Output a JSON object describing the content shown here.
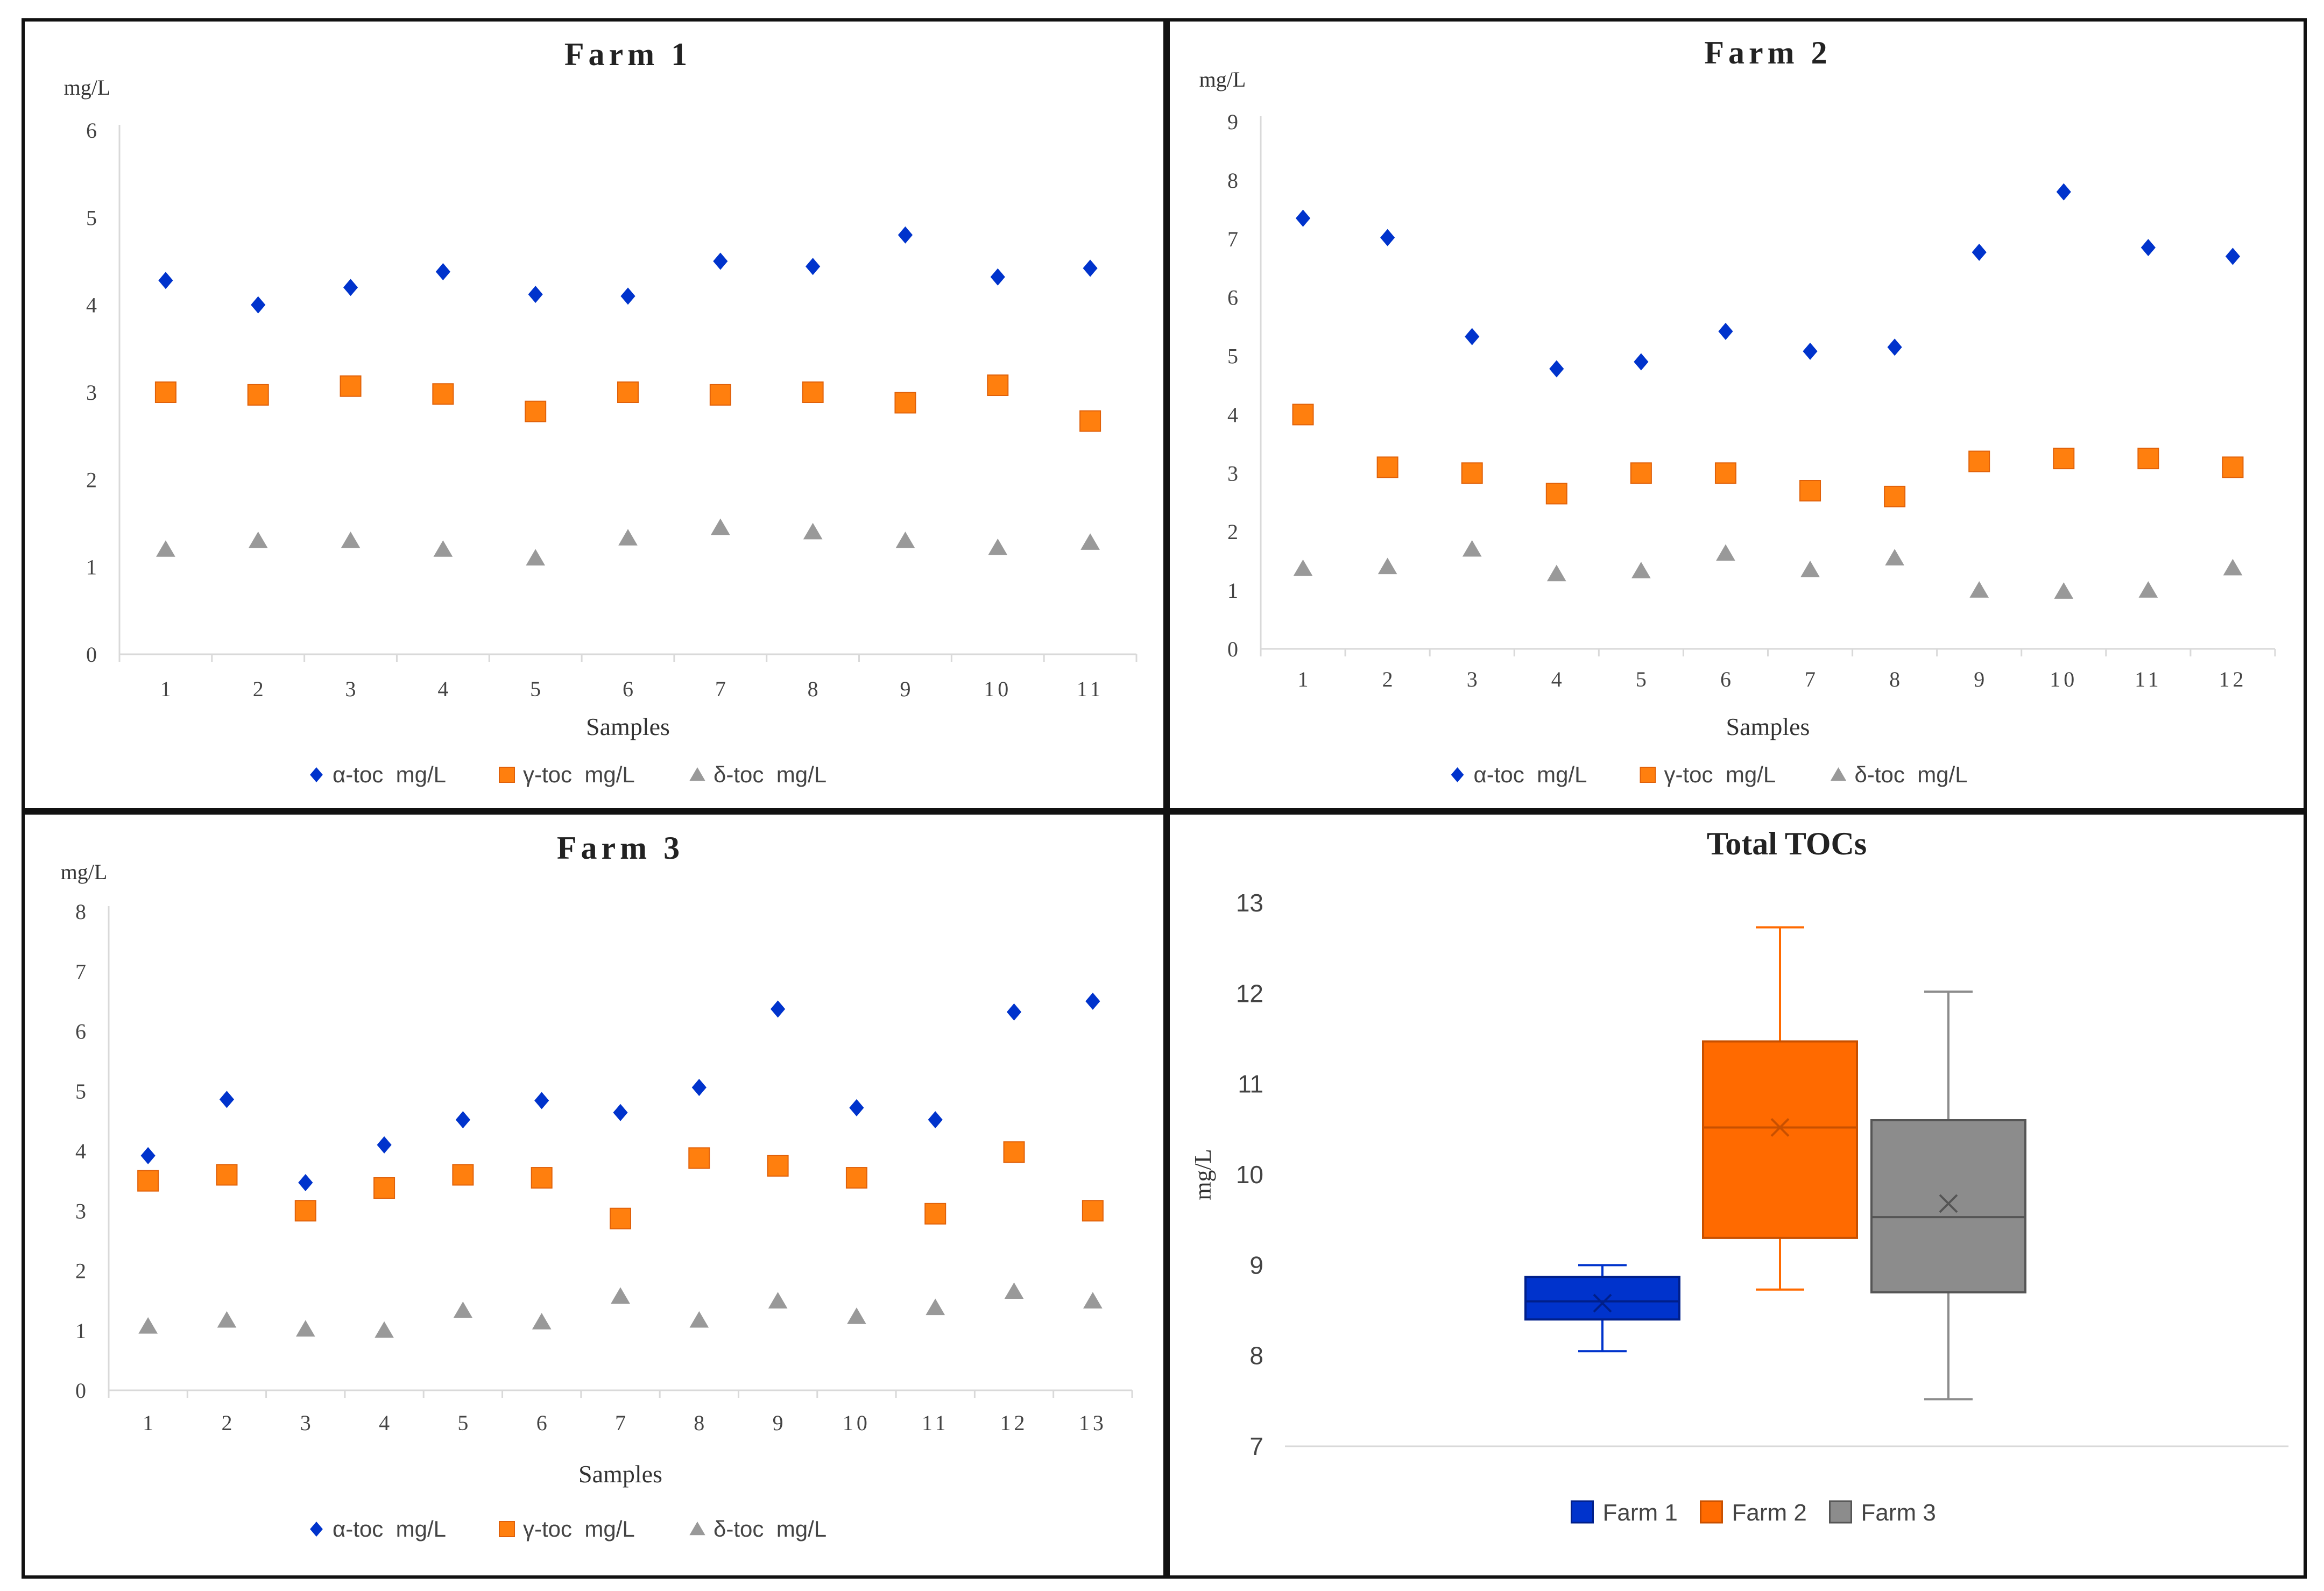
{
  "chart_data": [
    {
      "type": "scatter",
      "title": "Farm 1",
      "ylabel": "mg/L",
      "xlabel": "Samples",
      "ylim": [
        0,
        6
      ],
      "yticks": [
        0,
        1,
        2,
        3,
        4,
        5,
        6
      ],
      "categories": [
        "1",
        "2",
        "3",
        "4",
        "5",
        "6",
        "7",
        "8",
        "9",
        "10",
        "11"
      ],
      "legend_position": "bottom",
      "grid": false,
      "series": [
        {
          "name": "α-toc  mg/L",
          "marker": "diamond",
          "color": "#0033CC",
          "values": [
            4.28,
            4.0,
            4.2,
            4.38,
            4.12,
            4.1,
            4.5,
            4.44,
            4.8,
            4.32,
            4.42
          ]
        },
        {
          "name": "γ-toc  mg/L",
          "marker": "square",
          "color": "#FF7F0E",
          "values": [
            3.0,
            2.97,
            3.07,
            2.98,
            2.78,
            3.0,
            2.97,
            3.0,
            2.88,
            3.08,
            2.67
          ]
        },
        {
          "name": "δ-toc  mg/L",
          "marker": "triangle",
          "color": "#999999",
          "values": [
            1.2,
            1.3,
            1.3,
            1.2,
            1.1,
            1.33,
            1.45,
            1.4,
            1.3,
            1.22,
            1.28
          ]
        }
      ]
    },
    {
      "type": "scatter",
      "title": "Farm 2",
      "ylabel": "mg/L",
      "xlabel": "Samples",
      "ylim": [
        0,
        9
      ],
      "yticks": [
        0,
        1,
        2,
        3,
        4,
        5,
        6,
        7,
        8,
        9
      ],
      "categories": [
        "1",
        "2",
        "3",
        "4",
        "5",
        "6",
        "7",
        "8",
        "9",
        "10",
        "11",
        "12"
      ],
      "legend_position": "bottom",
      "grid": false,
      "series": [
        {
          "name": "α-toc  mg/L",
          "marker": "diamond",
          "color": "#0033CC",
          "values": [
            7.35,
            7.02,
            5.33,
            4.78,
            4.9,
            5.42,
            5.08,
            5.15,
            6.77,
            7.8,
            6.85,
            6.7
          ]
        },
        {
          "name": "γ-toc  mg/L",
          "marker": "square",
          "color": "#FF7F0E",
          "values": [
            4.0,
            3.1,
            3.0,
            2.65,
            3.0,
            3.0,
            2.7,
            2.6,
            3.2,
            3.25,
            3.25,
            3.1
          ]
        },
        {
          "name": "δ-toc  mg/L",
          "marker": "triangle",
          "color": "#999999",
          "values": [
            1.37,
            1.4,
            1.7,
            1.28,
            1.33,
            1.63,
            1.35,
            1.55,
            1.0,
            0.98,
            1.0,
            1.38
          ]
        }
      ]
    },
    {
      "type": "scatter",
      "title": "Farm 3",
      "ylabel": "mg/L",
      "xlabel": "Samples",
      "ylim": [
        0,
        8
      ],
      "yticks": [
        0,
        1,
        2,
        3,
        4,
        5,
        6,
        7,
        8
      ],
      "categories": [
        "1",
        "2",
        "3",
        "4",
        "5",
        "6",
        "7",
        "8",
        "9",
        "10",
        "11",
        "12",
        "13"
      ],
      "legend_position": "bottom",
      "grid": false,
      "series": [
        {
          "name": "α-toc  mg/L",
          "marker": "diamond",
          "color": "#0033CC",
          "values": [
            3.92,
            4.86,
            3.47,
            4.1,
            4.52,
            4.84,
            4.64,
            5.06,
            6.37,
            4.72,
            4.52,
            6.32,
            6.5
          ]
        },
        {
          "name": "γ-toc  mg/L",
          "marker": "square",
          "color": "#FF7F0E",
          "values": [
            3.5,
            3.6,
            3.0,
            3.38,
            3.6,
            3.55,
            2.87,
            3.88,
            3.75,
            3.55,
            2.95,
            3.98,
            3.0
          ]
        },
        {
          "name": "δ-toc  mg/L",
          "marker": "triangle",
          "color": "#999999",
          "values": [
            1.07,
            1.17,
            1.02,
            1.0,
            1.33,
            1.14,
            1.57,
            1.17,
            1.49,
            1.23,
            1.38,
            1.65,
            1.49
          ]
        }
      ]
    },
    {
      "type": "box",
      "title": "Total TOCs",
      "ylabel": "mg/L",
      "xlabel": "",
      "ylim": [
        7,
        13
      ],
      "yticks": [
        7,
        8,
        9,
        10,
        11,
        12,
        13
      ],
      "legend_position": "bottom",
      "grid": false,
      "series": [
        {
          "name": "Farm 1",
          "fill": "#0033CC",
          "edge": "#001F8A",
          "min": 8.05,
          "q1": 8.4,
          "median": 8.6,
          "q3": 8.87,
          "max": 9.0,
          "mean": 8.58
        },
        {
          "name": "Farm 2",
          "fill": "#FF6A00",
          "edge": "#C85000",
          "min": 8.73,
          "q1": 9.3,
          "median": 10.52,
          "q3": 11.47,
          "max": 12.73,
          "mean": 10.52
        },
        {
          "name": "Farm 3",
          "fill": "#8C8C8C",
          "edge": "#555555",
          "min": 7.52,
          "q1": 8.7,
          "median": 9.53,
          "q3": 10.6,
          "max": 12.02,
          "mean": 9.68
        }
      ]
    }
  ]
}
